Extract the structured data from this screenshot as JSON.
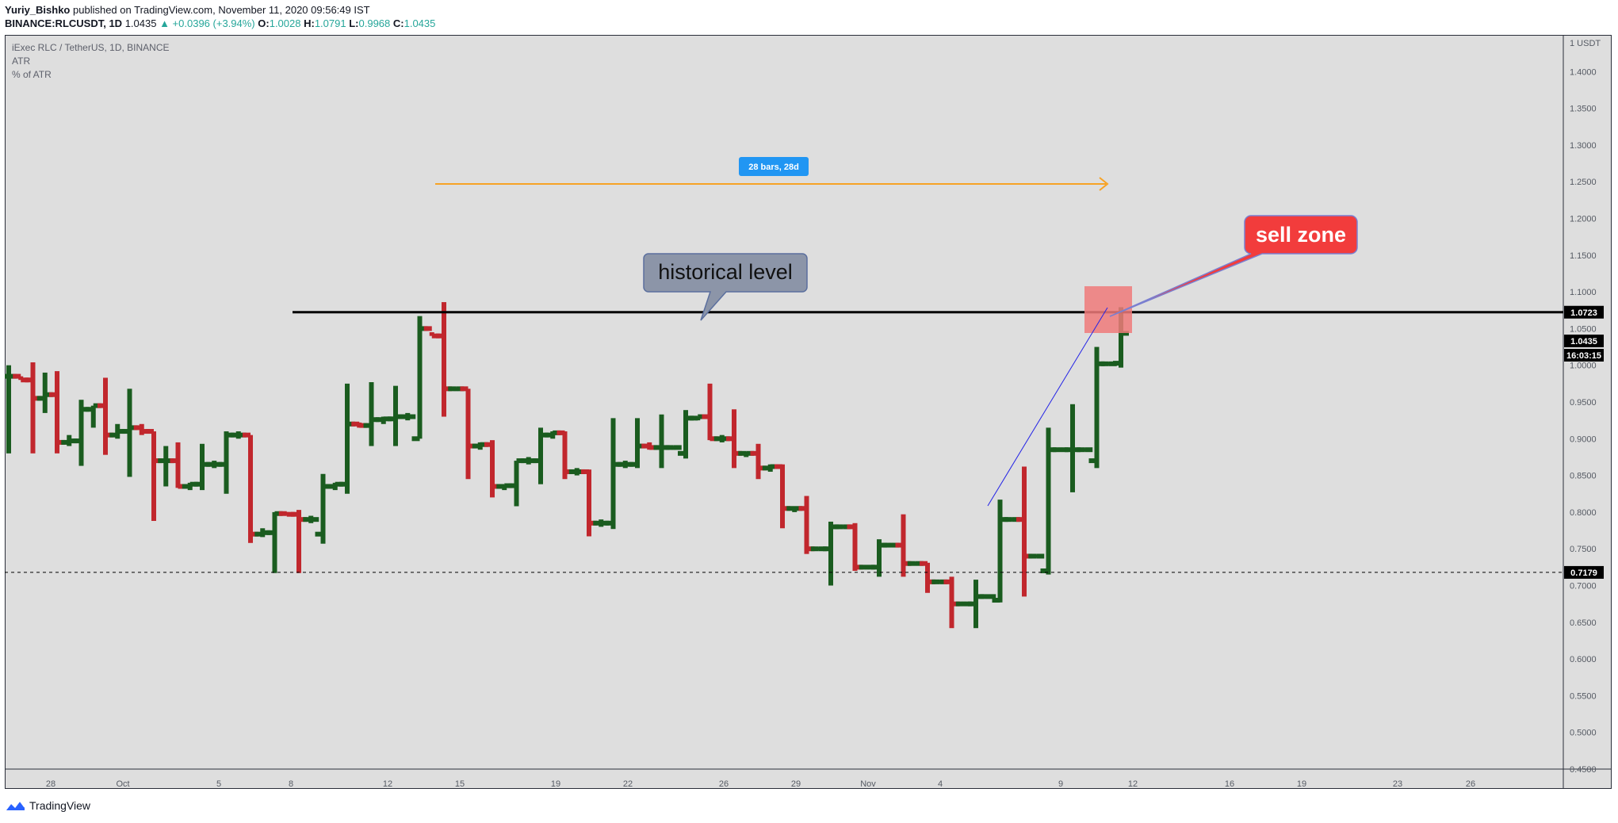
{
  "header": {
    "author": "Yuriy_Bishko",
    "published_text": "published on TradingView.com, November 11, 2020 09:56:49 IST",
    "symbol_line": "BINANCE:RLCUSDT, 1D",
    "last": "1.0435",
    "change": "▲ +0.0396 (+3.94%)",
    "o_label": "O:",
    "o": "1.0028",
    "h_label": "H:",
    "h": "1.0791",
    "l_label": "L:",
    "l": "0.9968",
    "c_label": "C:",
    "c": "1.0435"
  },
  "legend": {
    "title": "iExec RLC / TetherUS, 1D, BINANCE",
    "indicator1": "ATR",
    "indicator2": "% of ATR"
  },
  "annotations": {
    "measure_label": "28 bars, 28d",
    "historical_label": "historical level",
    "sell_label": "sell zone",
    "level_tag": "1.0723",
    "price_tag": "1.0435",
    "countdown_tag": "16:03:15",
    "low_tag": "0.7179"
  },
  "footer": {
    "brand": "TradingView"
  },
  "colors": {
    "up": "#1a5c1f",
    "down": "#c1272d",
    "background": "#dedede",
    "measure_line": "#f7a325",
    "measure_label_bg": "#2196f3",
    "callout_bg": "#8c95a8",
    "sell_bg": "#f23c3c",
    "zone_fill": "#f07a7a",
    "trendline": "#2323e6"
  },
  "chart_data": {
    "type": "ohlc",
    "unit": "USDT",
    "ylim": [
      0.45,
      1.45
    ],
    "y_ticks": [
      "1 USDT",
      "1.4000",
      "1.3500",
      "1.3000",
      "1.2500",
      "1.2000",
      "1.1500",
      "1.1000",
      "1.0500",
      "1.0000",
      "0.9500",
      "0.9000",
      "0.8500",
      "0.8000",
      "0.7500",
      "0.7000",
      "0.6500",
      "0.6000",
      "0.5500",
      "0.5000",
      "0.4500"
    ],
    "x_ticks": [
      "28",
      "Oct",
      "5",
      "8",
      "12",
      "15",
      "19",
      "22",
      "26",
      "29",
      "Nov",
      "4",
      "9",
      "12",
      "16",
      "19",
      "23",
      "26"
    ],
    "horizontal_levels": [
      1.0723,
      0.7179
    ],
    "bars": [
      {
        "o": 0.985,
        "h": 1.0,
        "l": 0.88,
        "c": 0.985
      },
      {
        "o": 0.985,
        "h": 0.985,
        "l": 0.98,
        "c": 0.98
      },
      {
        "o": 0.98,
        "h": 1.004,
        "l": 0.88,
        "c": 0.955
      },
      {
        "o": 0.955,
        "h": 0.99,
        "l": 0.935,
        "c": 0.96
      },
      {
        "o": 0.96,
        "h": 0.992,
        "l": 0.88,
        "c": 0.895
      },
      {
        "o": 0.895,
        "h": 0.905,
        "l": 0.89,
        "c": 0.897
      },
      {
        "o": 0.897,
        "h": 0.953,
        "l": 0.863,
        "c": 0.94
      },
      {
        "o": 0.94,
        "h": 0.945,
        "l": 0.915,
        "c": 0.945
      },
      {
        "o": 0.945,
        "h": 0.983,
        "l": 0.878,
        "c": 0.905
      },
      {
        "o": 0.905,
        "h": 0.92,
        "l": 0.9,
        "c": 0.91
      },
      {
        "o": 0.91,
        "h": 0.968,
        "l": 0.848,
        "c": 0.915
      },
      {
        "o": 0.915,
        "h": 0.92,
        "l": 0.905,
        "c": 0.91
      },
      {
        "o": 0.91,
        "h": 0.91,
        "l": 0.788,
        "c": 0.87
      },
      {
        "o": 0.87,
        "h": 0.89,
        "l": 0.835,
        "c": 0.87
      },
      {
        "o": 0.87,
        "h": 0.895,
        "l": 0.833,
        "c": 0.835
      },
      {
        "o": 0.835,
        "h": 0.84,
        "l": 0.83,
        "c": 0.838
      },
      {
        "o": 0.838,
        "h": 0.893,
        "l": 0.83,
        "c": 0.865
      },
      {
        "o": 0.865,
        "h": 0.87,
        "l": 0.86,
        "c": 0.865
      },
      {
        "o": 0.865,
        "h": 0.91,
        "l": 0.825,
        "c": 0.905
      },
      {
        "o": 0.905,
        "h": 0.91,
        "l": 0.9,
        "c": 0.905
      },
      {
        "o": 0.905,
        "h": 0.905,
        "l": 0.758,
        "c": 0.77
      },
      {
        "o": 0.77,
        "h": 0.778,
        "l": 0.766,
        "c": 0.772
      },
      {
        "o": 0.772,
        "h": 0.8,
        "l": 0.717,
        "c": 0.798
      },
      {
        "o": 0.798,
        "h": 0.8,
        "l": 0.796,
        "c": 0.797
      },
      {
        "o": 0.797,
        "h": 0.803,
        "l": 0.717,
        "c": 0.79
      },
      {
        "o": 0.79,
        "h": 0.795,
        "l": 0.785,
        "c": 0.79
      },
      {
        "o": 0.77,
        "h": 0.852,
        "l": 0.757,
        "c": 0.835
      },
      {
        "o": 0.835,
        "h": 0.84,
        "l": 0.83,
        "c": 0.838
      },
      {
        "o": 0.838,
        "h": 0.975,
        "l": 0.825,
        "c": 0.92
      },
      {
        "o": 0.92,
        "h": 0.922,
        "l": 0.915,
        "c": 0.918
      },
      {
        "o": 0.918,
        "h": 0.977,
        "l": 0.89,
        "c": 0.926
      },
      {
        "o": 0.926,
        "h": 0.93,
        "l": 0.92,
        "c": 0.927
      },
      {
        "o": 0.927,
        "h": 0.972,
        "l": 0.89,
        "c": 0.93
      },
      {
        "o": 0.93,
        "h": 0.935,
        "l": 0.925,
        "c": 0.93
      },
      {
        "o": 0.9,
        "h": 1.067,
        "l": 0.9,
        "c": 1.05
      },
      {
        "o": 1.05,
        "h": 1.045,
        "l": 1.04,
        "c": 1.04
      },
      {
        "o": 1.04,
        "h": 1.086,
        "l": 0.93,
        "c": 0.968
      },
      {
        "o": 0.968,
        "h": 0.97,
        "l": 0.965,
        "c": 0.968
      },
      {
        "o": 0.968,
        "h": 0.968,
        "l": 0.845,
        "c": 0.89
      },
      {
        "o": 0.89,
        "h": 0.895,
        "l": 0.885,
        "c": 0.892
      },
      {
        "o": 0.892,
        "h": 0.898,
        "l": 0.82,
        "c": 0.835
      },
      {
        "o": 0.835,
        "h": 0.837,
        "l": 0.83,
        "c": 0.836
      },
      {
        "o": 0.836,
        "h": 0.87,
        "l": 0.808,
        "c": 0.87
      },
      {
        "o": 0.87,
        "h": 0.875,
        "l": 0.865,
        "c": 0.87
      },
      {
        "o": 0.87,
        "h": 0.915,
        "l": 0.838,
        "c": 0.905
      },
      {
        "o": 0.905,
        "h": 0.91,
        "l": 0.9,
        "c": 0.908
      },
      {
        "o": 0.908,
        "h": 0.91,
        "l": 0.845,
        "c": 0.855
      },
      {
        "o": 0.855,
        "h": 0.86,
        "l": 0.85,
        "c": 0.855
      },
      {
        "o": 0.855,
        "h": 0.858,
        "l": 0.767,
        "c": 0.785
      },
      {
        "o": 0.785,
        "h": 0.79,
        "l": 0.78,
        "c": 0.785
      },
      {
        "o": 0.785,
        "h": 0.928,
        "l": 0.777,
        "c": 0.865
      },
      {
        "o": 0.865,
        "h": 0.87,
        "l": 0.86,
        "c": 0.865
      },
      {
        "o": 0.865,
        "h": 0.928,
        "l": 0.86,
        "c": 0.89
      },
      {
        "o": 0.89,
        "h": 0.895,
        "l": 0.885,
        "c": 0.888
      },
      {
        "o": 0.888,
        "h": 0.933,
        "l": 0.86,
        "c": 0.888
      },
      {
        "o": 0.888,
        "h": 0.89,
        "l": 0.885,
        "c": 0.888
      },
      {
        "o": 0.88,
        "h": 0.939,
        "l": 0.873,
        "c": 0.928
      },
      {
        "o": 0.928,
        "h": 0.93,
        "l": 0.925,
        "c": 0.93
      },
      {
        "o": 0.93,
        "h": 0.975,
        "l": 0.898,
        "c": 0.9
      },
      {
        "o": 0.9,
        "h": 0.905,
        "l": 0.895,
        "c": 0.9
      },
      {
        "o": 0.9,
        "h": 0.94,
        "l": 0.86,
        "c": 0.88
      },
      {
        "o": 0.88,
        "h": 0.882,
        "l": 0.875,
        "c": 0.88
      },
      {
        "o": 0.88,
        "h": 0.893,
        "l": 0.845,
        "c": 0.86
      },
      {
        "o": 0.86,
        "h": 0.865,
        "l": 0.855,
        "c": 0.862
      },
      {
        "o": 0.862,
        "h": 0.865,
        "l": 0.778,
        "c": 0.805
      },
      {
        "o": 0.805,
        "h": 0.808,
        "l": 0.8,
        "c": 0.805
      },
      {
        "o": 0.805,
        "h": 0.822,
        "l": 0.743,
        "c": 0.75
      },
      {
        "o": 0.75,
        "h": 0.752,
        "l": 0.748,
        "c": 0.75
      },
      {
        "o": 0.75,
        "h": 0.787,
        "l": 0.7,
        "c": 0.78
      },
      {
        "o": 0.78,
        "h": 0.782,
        "l": 0.778,
        "c": 0.78
      },
      {
        "o": 0.78,
        "h": 0.785,
        "l": 0.72,
        "c": 0.725
      },
      {
        "o": 0.725,
        "h": 0.728,
        "l": 0.722,
        "c": 0.725
      },
      {
        "o": 0.725,
        "h": 0.763,
        "l": 0.712,
        "c": 0.755
      },
      {
        "o": 0.755,
        "h": 0.758,
        "l": 0.752,
        "c": 0.755
      },
      {
        "o": 0.755,
        "h": 0.797,
        "l": 0.712,
        "c": 0.73
      },
      {
        "o": 0.73,
        "h": 0.732,
        "l": 0.727,
        "c": 0.73
      },
      {
        "o": 0.73,
        "h": 0.731,
        "l": 0.69,
        "c": 0.705
      },
      {
        "o": 0.705,
        "h": 0.707,
        "l": 0.703,
        "c": 0.705
      },
      {
        "o": 0.705,
        "h": 0.712,
        "l": 0.642,
        "c": 0.675
      },
      {
        "o": 0.675,
        "h": 0.678,
        "l": 0.672,
        "c": 0.675
      },
      {
        "o": 0.675,
        "h": 0.708,
        "l": 0.642,
        "c": 0.685
      },
      {
        "o": 0.685,
        "h": 0.688,
        "l": 0.682,
        "c": 0.685
      },
      {
        "o": 0.68,
        "h": 0.817,
        "l": 0.677,
        "c": 0.79
      },
      {
        "o": 0.79,
        "h": 0.792,
        "l": 0.788,
        "c": 0.79
      },
      {
        "o": 0.79,
        "h": 0.862,
        "l": 0.685,
        "c": 0.74
      },
      {
        "o": 0.74,
        "h": 0.742,
        "l": 0.738,
        "c": 0.74
      },
      {
        "o": 0.72,
        "h": 0.915,
        "l": 0.715,
        "c": 0.885
      },
      {
        "o": 0.885,
        "h": 0.888,
        "l": 0.882,
        "c": 0.885
      },
      {
        "o": 0.885,
        "h": 0.947,
        "l": 0.827,
        "c": 0.885
      },
      {
        "o": 0.885,
        "h": 0.887,
        "l": 0.883,
        "c": 0.885
      },
      {
        "o": 0.87,
        "h": 1.025,
        "l": 0.86,
        "c": 1.002
      },
      {
        "o": 1.002,
        "h": 1.004,
        "l": 1.0,
        "c": 1.002
      },
      {
        "o": 1.0028,
        "h": 1.0791,
        "l": 0.9968,
        "c": 1.0435
      }
    ]
  }
}
